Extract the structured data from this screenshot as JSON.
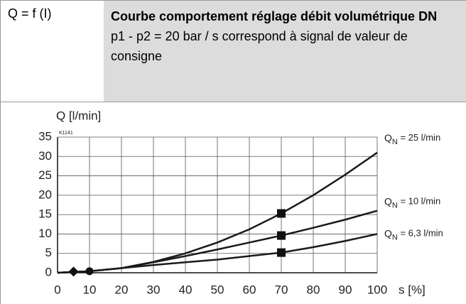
{
  "header": {
    "left": "Q = f (I)",
    "title": "Courbe comportement réglage débit volumétrique DN",
    "subtitle": "p1 - p2 = 20 bar / s correspond à signal de valeur de consigne"
  },
  "chart_data": {
    "type": "line",
    "ylabel": "Q [l/min]",
    "xlabel": "s [%]",
    "annotation": "K1141",
    "x": [
      0,
      10,
      20,
      30,
      40,
      50,
      60,
      70,
      80,
      90,
      100
    ],
    "series": [
      {
        "name": {
          "base": "Q",
          "sub": "N",
          "rest": " = 25 l/min"
        },
        "color": "#1a1a1a",
        "values": [
          0,
          0.4,
          1.2,
          2.8,
          5,
          7.8,
          11.2,
          15.3,
          20,
          25.3,
          31
        ]
      },
      {
        "name": {
          "base": "Q",
          "sub": "N",
          "rest": " = 10 l/min"
        },
        "color": "#1a1a1a",
        "values": [
          0,
          0.4,
          1.2,
          2.7,
          4.3,
          6,
          7.8,
          9.6,
          11.6,
          13.7,
          16
        ]
      },
      {
        "name": {
          "base": "Q",
          "sub": "N",
          "rest": " = 6,3 l/min"
        },
        "color": "#1a1a1a",
        "values": [
          0,
          0.4,
          1.2,
          2.0,
          2.7,
          3.4,
          4.3,
          5.2,
          6.6,
          8.2,
          10
        ]
      }
    ],
    "markers": [
      {
        "shape": "diamond",
        "x": 5,
        "y": 0.3
      },
      {
        "shape": "circle",
        "x": 10,
        "y": 0.4
      },
      {
        "shape": "square",
        "x": 70,
        "y": 15.3
      },
      {
        "shape": "square",
        "x": 70,
        "y": 9.6
      },
      {
        "shape": "square",
        "x": 70,
        "y": 5.2
      }
    ],
    "xlim": [
      0,
      100
    ],
    "xticks": [
      0,
      10,
      20,
      30,
      40,
      50,
      60,
      70,
      80,
      90,
      100
    ],
    "ylim": [
      0,
      35
    ],
    "yticks": [
      0,
      5,
      10,
      15,
      20,
      25,
      30,
      35
    ],
    "grid": true
  }
}
